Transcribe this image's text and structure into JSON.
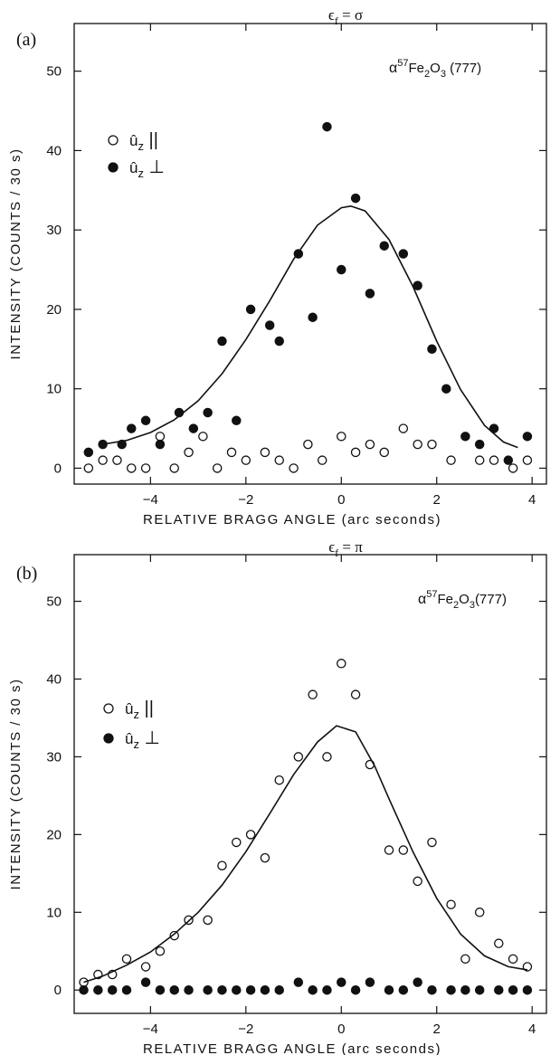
{
  "chart_data": [
    {
      "type": "scatter",
      "panel_label": "(a)",
      "title_html": "ε_f = σ",
      "title": {
        "sym": "ϵ",
        "sub": "f",
        "rest": " = σ"
      },
      "annotation": {
        "prefix": "α",
        "sup": "57",
        "mid": "Fe",
        "sub": "2",
        "mid2": "O",
        "sub2": "3",
        "rest": " (777)"
      },
      "xlabel": "RELATIVE BRAGG ANGLE (arc seconds)",
      "ylabel": "INTENSITY (COUNTS / 30 s)",
      "xlim": [
        -5.6,
        4.3
      ],
      "ylim": [
        -2,
        56
      ],
      "xticks": [
        -4,
        -2,
        0,
        2,
        4
      ],
      "yticks": [
        0,
        10,
        20,
        30,
        40,
        50
      ],
      "legend_placement": "left",
      "legend": [
        {
          "symbol": "open-circle",
          "label": "û z ||",
          "u": "û",
          "sub": "z",
          "tail": "||"
        },
        {
          "symbol": "filled-circle",
          "label": "û z ⊥",
          "u": "û",
          "sub": "z",
          "tail": "⊥"
        }
      ],
      "series": [
        {
          "name": "û z ||",
          "marker": "open",
          "x": [
            -5.3,
            -5.0,
            -4.7,
            -4.4,
            -4.1,
            -3.8,
            -3.5,
            -3.2,
            -2.9,
            -2.6,
            -2.3,
            -2.0,
            -1.6,
            -1.3,
            -1.0,
            -0.7,
            -0.4,
            0.0,
            0.3,
            0.6,
            0.9,
            1.3,
            1.6,
            1.9,
            2.3,
            2.9,
            3.2,
            3.6,
            3.9
          ],
          "y": [
            0,
            1,
            1,
            0,
            0,
            4,
            0,
            2,
            4,
            0,
            2,
            1,
            2,
            1,
            0,
            3,
            1,
            4,
            2,
            3,
            2,
            5,
            3,
            3,
            1,
            1,
            1,
            0,
            1
          ]
        },
        {
          "name": "û z ⊥",
          "marker": "filled",
          "x": [
            -5.3,
            -5.0,
            -4.6,
            -4.4,
            -4.1,
            -3.8,
            -3.4,
            -3.1,
            -2.8,
            -2.5,
            -2.2,
            -1.9,
            -1.5,
            -1.3,
            -0.9,
            -0.6,
            -0.3,
            0.0,
            0.3,
            0.6,
            0.9,
            1.3,
            1.6,
            1.9,
            2.2,
            2.6,
            2.9,
            3.2,
            3.5,
            3.9
          ],
          "y": [
            2,
            3,
            3,
            5,
            6,
            3,
            7,
            5,
            7,
            16,
            6,
            20,
            18,
            16,
            27,
            19,
            43,
            25,
            34,
            22,
            28,
            27,
            23,
            15,
            10,
            4,
            3,
            5,
            1,
            4
          ]
        },
        {
          "name": "fit",
          "marker": "line",
          "x": [
            -5.0,
            -4.5,
            -4.0,
            -3.5,
            -3.0,
            -2.5,
            -2.0,
            -1.5,
            -1.0,
            -0.5,
            0.0,
            0.2,
            0.5,
            1.0,
            1.5,
            2.0,
            2.5,
            3.0,
            3.4,
            3.7
          ],
          "y": [
            3,
            3.5,
            4.5,
            6.1,
            8.5,
            11.9,
            16.2,
            21.1,
            26.3,
            30.6,
            32.8,
            33.0,
            32.4,
            28.8,
            22.9,
            16.0,
            9.9,
            5.4,
            3.3,
            2.6
          ]
        }
      ]
    },
    {
      "type": "scatter",
      "panel_label": "(b)",
      "title": {
        "sym": "ϵ",
        "sub": "f",
        "rest": " = π"
      },
      "annotation": {
        "prefix": "α",
        "sup": "57",
        "mid": "Fe",
        "sub": "2",
        "mid2": "O",
        "sub2": "3",
        "rest": "(777)"
      },
      "xlabel": "RELATIVE BRAGG ANGLE (arc seconds)",
      "ylabel": "INTENSITY (COUNTS / 30 s)",
      "xlim": [
        -5.6,
        4.3
      ],
      "ylim": [
        -3,
        56
      ],
      "xticks": [
        -4,
        -2,
        0,
        2,
        4
      ],
      "yticks": [
        0,
        10,
        20,
        30,
        40,
        50
      ],
      "legend_placement": "left",
      "legend": [
        {
          "symbol": "open-circle",
          "label": "û z ||",
          "u": "û",
          "sub": "z",
          "tail": "||"
        },
        {
          "symbol": "filled-circle",
          "label": "û z ⊥",
          "u": "û",
          "sub": "z",
          "tail": "⊥"
        }
      ],
      "series": [
        {
          "name": "û z ||",
          "marker": "open",
          "x": [
            -5.4,
            -5.1,
            -4.8,
            -4.5,
            -4.1,
            -3.8,
            -3.5,
            -3.2,
            -2.8,
            -2.5,
            -2.2,
            -1.9,
            -1.6,
            -1.3,
            -0.9,
            -0.6,
            -0.3,
            0.0,
            0.3,
            0.6,
            1.0,
            1.3,
            1.6,
            1.9,
            2.3,
            2.6,
            2.9,
            3.3,
            3.6,
            3.9
          ],
          "y": [
            1,
            2,
            2,
            4,
            3,
            5,
            7,
            9,
            9,
            16,
            19,
            20,
            17,
            27,
            30,
            38,
            30,
            42,
            38,
            29,
            18,
            18,
            14,
            19,
            11,
            4,
            10,
            6,
            4,
            3
          ]
        },
        {
          "name": "û z ⊥",
          "marker": "filled",
          "x": [
            -5.4,
            -5.1,
            -4.8,
            -4.5,
            -4.1,
            -3.8,
            -3.5,
            -3.2,
            -2.8,
            -2.5,
            -2.2,
            -1.9,
            -1.6,
            -1.3,
            -0.9,
            -0.6,
            -0.3,
            0.0,
            0.3,
            0.6,
            1.0,
            1.3,
            1.6,
            1.9,
            2.3,
            2.6,
            2.9,
            3.3,
            3.6,
            3.9
          ],
          "y": [
            0,
            0,
            0,
            0,
            1,
            0,
            0,
            0,
            0,
            0,
            0,
            0,
            0,
            0,
            1,
            0,
            0,
            1,
            0,
            1,
            0,
            0,
            1,
            0,
            0,
            0,
            0,
            0,
            0,
            0
          ]
        },
        {
          "name": "fit",
          "marker": "line",
          "x": [
            -5.4,
            -5.0,
            -4.5,
            -4.0,
            -3.5,
            -3.0,
            -2.5,
            -2.0,
            -1.5,
            -1.0,
            -0.5,
            -0.1,
            0.3,
            0.7,
            1.0,
            1.5,
            2.0,
            2.5,
            3.0,
            3.5,
            3.9
          ],
          "y": [
            1,
            1.8,
            3.2,
            4.9,
            7.2,
            10.0,
            13.5,
            17.8,
            22.7,
            27.7,
            31.9,
            34.0,
            33.2,
            28.8,
            24.6,
            17.8,
            11.8,
            7.2,
            4.4,
            3.0,
            2.6
          ]
        }
      ]
    }
  ]
}
